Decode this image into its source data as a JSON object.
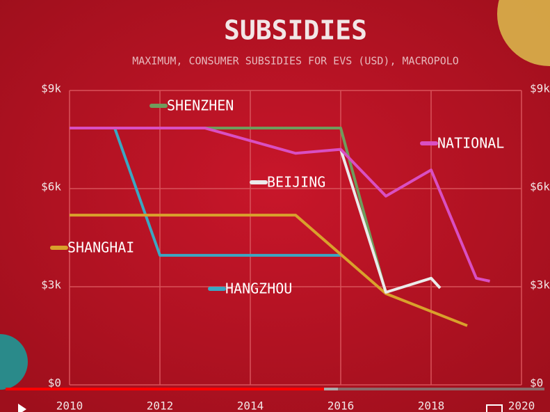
{
  "chart_data": {
    "type": "line",
    "title": "SUBSIDIES",
    "subtitle": "MAXIMUM, CONSUMER SUBSIDIES FOR EVS (USD), MACROPOLO",
    "xlim": [
      2010,
      2020
    ],
    "xticks": [
      2010,
      2012,
      2014,
      2016,
      2018,
      2020
    ],
    "ylim": [
      0,
      9
    ],
    "yticks": [
      {
        "value": 0,
        "label": "$0"
      },
      {
        "value": 3,
        "label": "$3k"
      },
      {
        "value": 6,
        "label": "$6k"
      },
      {
        "value": 9,
        "label": "$9k"
      }
    ],
    "grid": true,
    "series": [
      {
        "name": "SHENZHEN",
        "color": "#6f9c5c",
        "x": [
          2010,
          2016,
          2017
        ],
        "values": [
          7.85,
          7.85,
          2.8
        ]
      },
      {
        "name": "HANGZHOU",
        "color": "#3ba7c2",
        "x": [
          2010,
          2011,
          2012,
          2016
        ],
        "values": [
          7.85,
          7.85,
          3.96,
          3.96
        ]
      },
      {
        "name": "SHANGHAI",
        "color": "#d9a12c",
        "x": [
          2010,
          2015,
          2017,
          2018.8
        ],
        "values": [
          5.19,
          5.19,
          2.79,
          1.81
        ]
      },
      {
        "name": "BEIJING",
        "color": "#ebebeb",
        "x": [
          2016,
          2017,
          2018,
          2018.2
        ],
        "values": [
          7.2,
          2.83,
          3.26,
          2.96
        ]
      },
      {
        "name": "NATIONAL",
        "color": "#d94fc2",
        "x": [
          2010,
          2013,
          2015,
          2016,
          2017,
          2018,
          2019,
          2019.3
        ],
        "values": [
          7.85,
          7.85,
          7.08,
          7.2,
          5.77,
          6.57,
          3.26,
          3.17
        ]
      }
    ]
  }
}
